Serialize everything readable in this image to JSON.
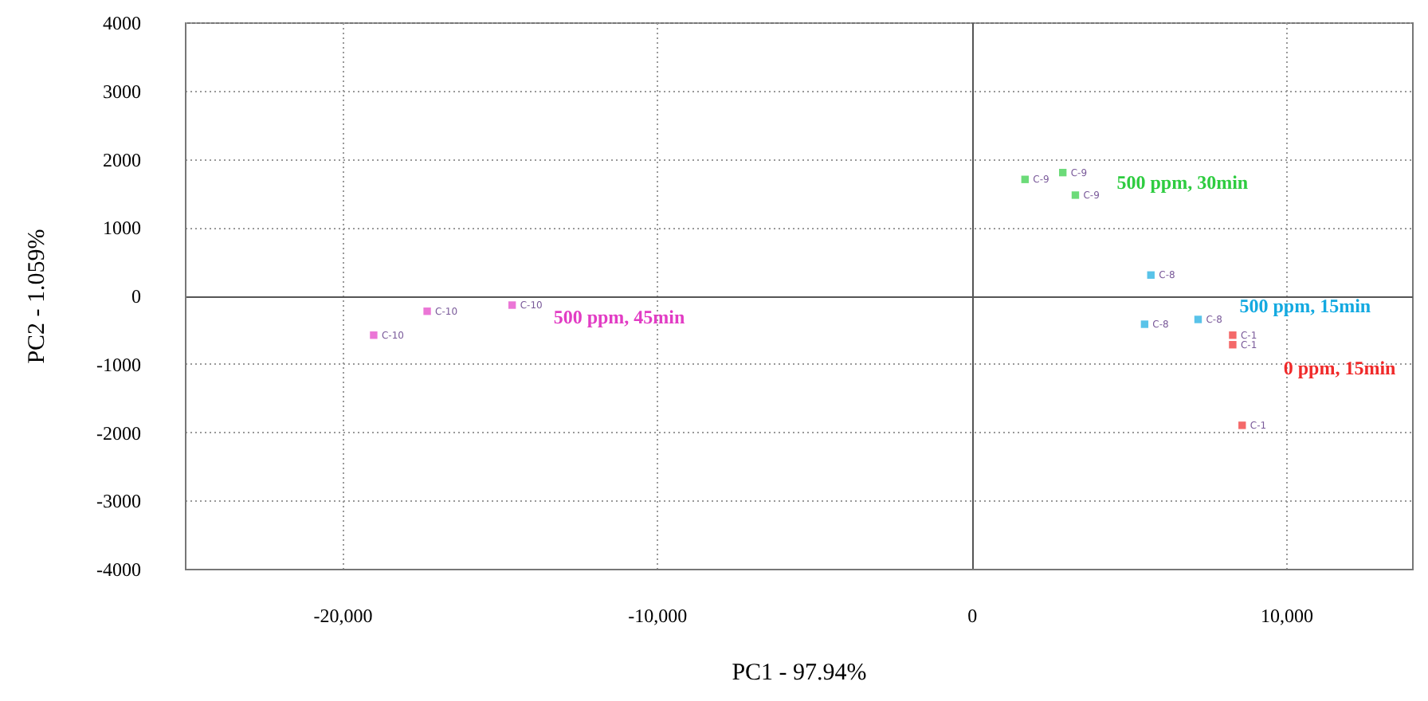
{
  "chart_data": {
    "type": "scatter",
    "xlabel": "PC1 - 97.94%",
    "ylabel": "PC2 - 1.059%",
    "xlim": [
      -25000,
      14000
    ],
    "ylim": [
      -4000,
      4000
    ],
    "xticks": [
      {
        "value": -20000,
        "label": "-20,000"
      },
      {
        "value": -10000,
        "label": "-10,000"
      },
      0,
      {
        "value": 10000,
        "label": "10,000"
      }
    ],
    "yticks": [
      -4000,
      -3000,
      -2000,
      -1000,
      0,
      1000,
      2000,
      3000,
      4000
    ],
    "grid": true,
    "marker": "square",
    "series": [
      {
        "name": "500 ppm, 45min",
        "color": "#e23cc4",
        "x": [
          -19000,
          -17300,
          -14600
        ],
        "values": [
          -580,
          -230,
          -140
        ]
      },
      {
        "name": "500 ppm, 30min",
        "color": "#2ecc40",
        "x": [
          1700,
          2900,
          3300
        ],
        "values": [
          1700,
          1800,
          1470
        ]
      },
      {
        "name": "500 ppm, 15min",
        "color": "#13a9e0",
        "x": [
          5700,
          5500,
          7200
        ],
        "values": [
          300,
          -420,
          -350
        ]
      },
      {
        "name": "0 ppm, 15min",
        "color": "#f02a2a",
        "x": [
          8300,
          8300,
          8600
        ],
        "values": [
          -580,
          -720,
          -1900
        ]
      }
    ],
    "annotations": [
      {
        "text": "C-10",
        "x": -19000,
        "y": -580
      },
      {
        "text": "C-10",
        "x": -17300,
        "y": -230
      },
      {
        "text": "C-10",
        "x": -14600,
        "y": -140
      },
      {
        "text": "C-9",
        "x": 1700,
        "y": 1700
      },
      {
        "text": "C-9",
        "x": 2900,
        "y": 1800
      },
      {
        "text": "C-9",
        "x": 3300,
        "y": 1470
      },
      {
        "text": "C-8",
        "x": 5700,
        "y": 300
      },
      {
        "text": "C-8",
        "x": 5500,
        "y": -420
      },
      {
        "text": "C-8",
        "x": 7200,
        "y": -350
      },
      {
        "text": "C-1",
        "x": 8300,
        "y": -580
      },
      {
        "text": "C-1",
        "x": 8300,
        "y": -720
      },
      {
        "text": "C-1",
        "x": 8600,
        "y": -1900
      }
    ]
  }
}
